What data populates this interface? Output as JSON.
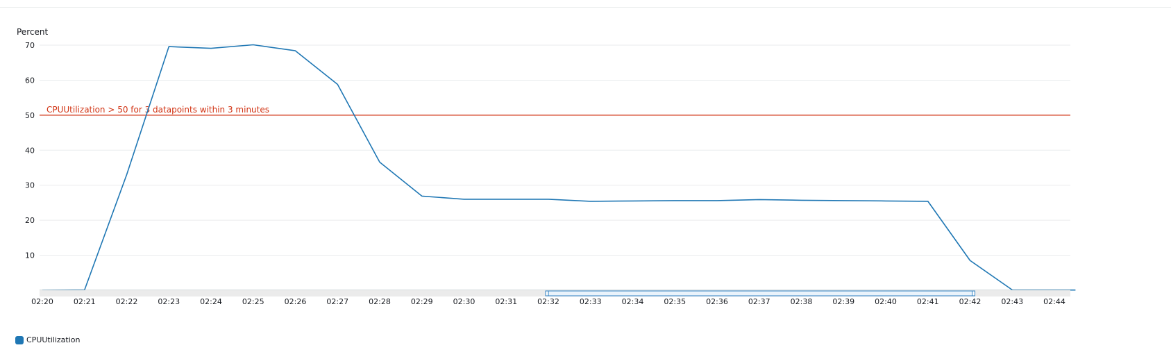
{
  "chart_data": {
    "type": "line",
    "ylabel": "Percent",
    "ylim": [
      0,
      71
    ],
    "yticks": [
      10,
      20,
      30,
      40,
      50,
      60,
      70
    ],
    "categories": [
      "02:20",
      "02:21",
      "02:22",
      "02:23",
      "02:24",
      "02:25",
      "02:26",
      "02:27",
      "02:28",
      "02:29",
      "02:30",
      "02:31",
      "02:32",
      "02:33",
      "02:34",
      "02:35",
      "02:36",
      "02:37",
      "02:38",
      "02:39",
      "02:40",
      "02:41",
      "02:42",
      "02:43",
      "02:44"
    ],
    "series": [
      {
        "name": "CPUUtilization",
        "color": "#1f77b4",
        "x": [
          "02:20",
          "02:21",
          "02:22",
          "02:23",
          "02:24",
          "02:25",
          "02:26",
          "02:27",
          "02:28",
          "02:29",
          "02:30",
          "02:31",
          "02:32",
          "02:33",
          "02:34",
          "02:35",
          "02:36",
          "02:37",
          "02:38",
          "02:39",
          "02:40",
          "02:41",
          "02:42",
          "02:43",
          "02:44",
          "02:44.5"
        ],
        "values": [
          0,
          0.1,
          33,
          69.6,
          69.1,
          70.1,
          68.4,
          58.8,
          36.6,
          26.9,
          26.0,
          26.0,
          26.0,
          25.4,
          25.5,
          25.6,
          25.6,
          25.9,
          25.7,
          25.6,
          25.5,
          25.4,
          8.5,
          0.1,
          0.05,
          0.05
        ]
      }
    ],
    "threshold": {
      "value": 50,
      "label": "CPUUtilization > 50 for 3 datapoints within 3 minutes",
      "color": "#d13212"
    },
    "grid": true,
    "legend": "bottom-left",
    "brush": {
      "start": "02:32",
      "end": "02:42"
    }
  }
}
